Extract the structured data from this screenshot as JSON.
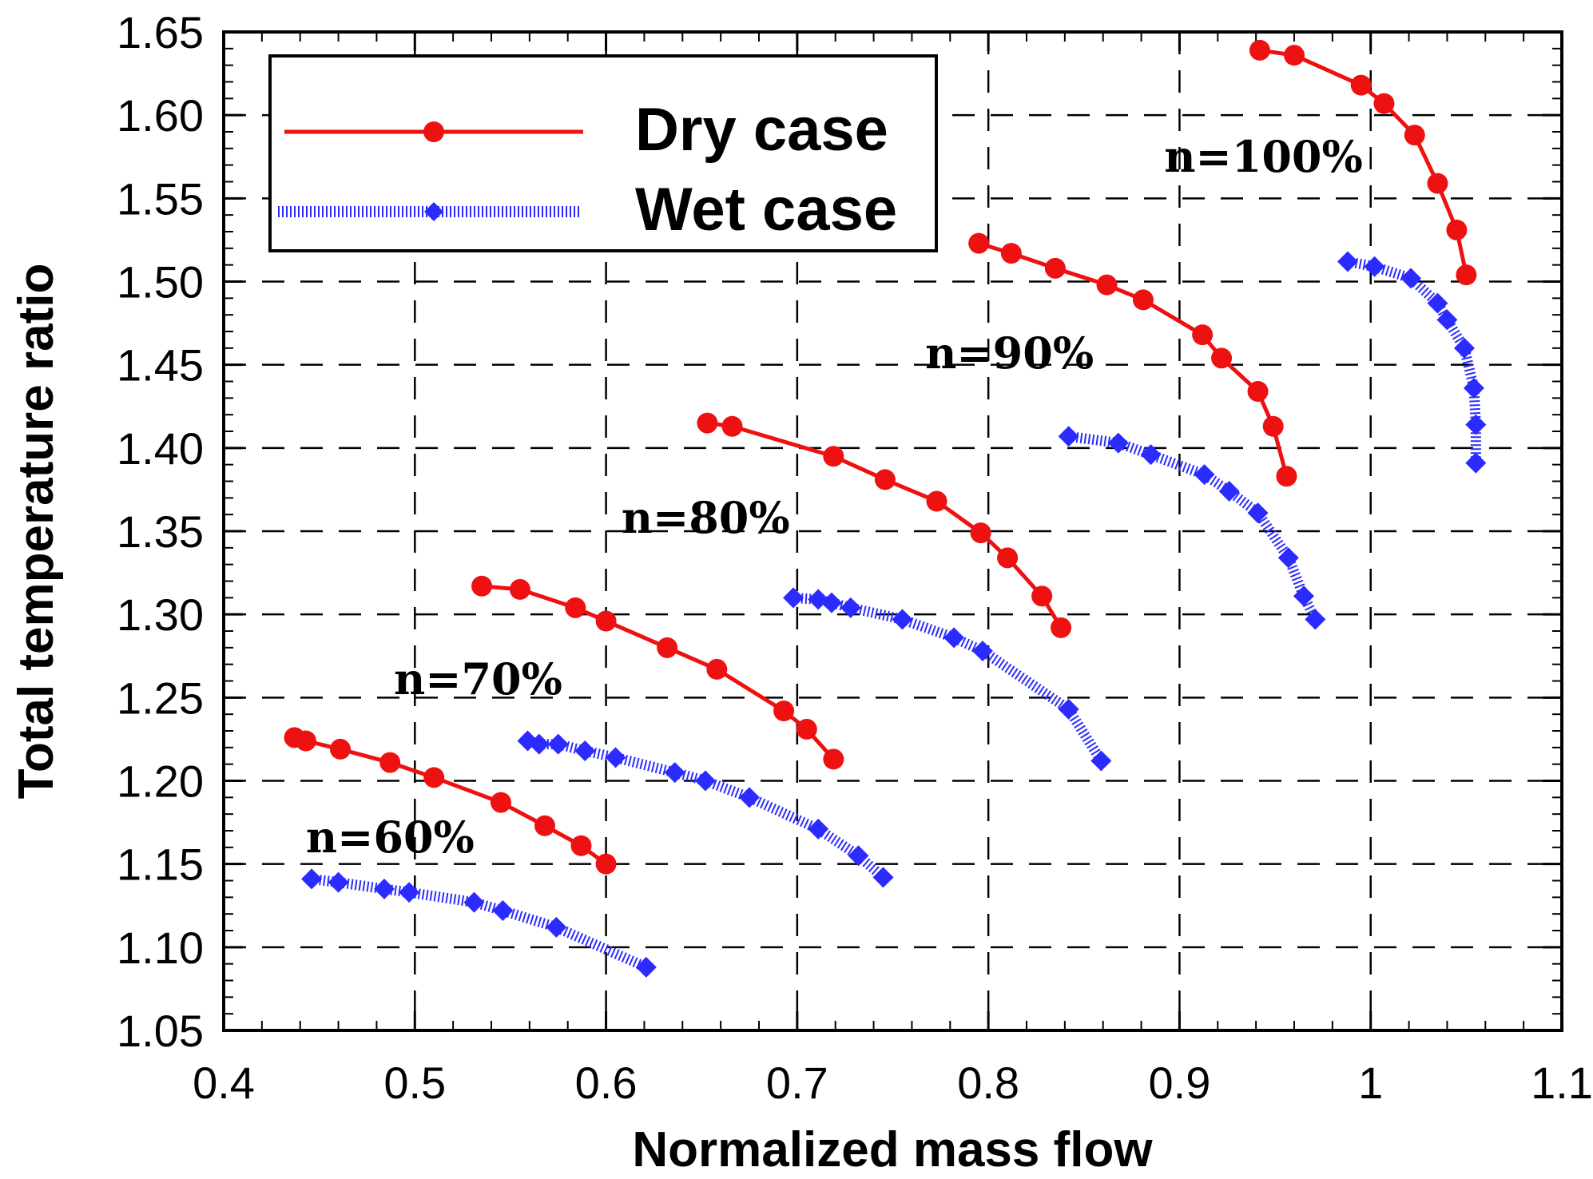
{
  "chart_data": {
    "type": "line",
    "xlabel": "Normalized mass flow",
    "ylabel": "Total temperature ratio",
    "xlim": [
      0.4,
      1.1
    ],
    "ylim": [
      1.05,
      1.65
    ],
    "xticks": [
      0.4,
      0.5,
      0.6,
      0.7,
      0.8,
      0.9,
      1.0,
      1.1
    ],
    "xtick_labels": [
      "0.4",
      "0.5",
      "0.6",
      "0.7",
      "0.8",
      "0.9",
      "1",
      "1.1"
    ],
    "yticks": [
      1.05,
      1.1,
      1.15,
      1.2,
      1.25,
      1.3,
      1.35,
      1.4,
      1.45,
      1.5,
      1.55,
      1.6,
      1.65
    ],
    "ytick_labels": [
      "1.05",
      "1.10",
      "1.15",
      "1.20",
      "1.25",
      "1.30",
      "1.35",
      "1.40",
      "1.45",
      "1.50",
      "1.55",
      "1.60",
      "1.65"
    ],
    "grid": true,
    "legend": {
      "placement": "top-left",
      "entries": [
        {
          "label": "Dry case",
          "color": "#ee1111",
          "marker": "circle",
          "line": "solid"
        },
        {
          "label": "Wet case",
          "color": "#2b2bff",
          "marker": "diamond",
          "line": "dotted"
        }
      ]
    },
    "annotations": [
      {
        "text": "n=60%",
        "x": 0.443,
        "y": 1.157
      },
      {
        "text": "n=70%",
        "x": 0.489,
        "y": 1.252
      },
      {
        "text": "n=80%",
        "x": 0.608,
        "y": 1.349
      },
      {
        "text": "n=90%",
        "x": 0.767,
        "y": 1.448
      },
      {
        "text": "n=100%",
        "x": 0.892,
        "y": 1.566
      }
    ],
    "series": [
      {
        "name": "Dry case",
        "speed": "n=60%",
        "x": [
          0.437,
          0.443,
          0.461,
          0.487,
          0.51,
          0.545,
          0.568,
          0.587,
          0.6
        ],
        "y": [
          1.226,
          1.224,
          1.219,
          1.211,
          1.202,
          1.187,
          1.173,
          1.161,
          1.15
        ]
      },
      {
        "name": "Wet case",
        "speed": "n=60%",
        "x": [
          0.446,
          0.46,
          0.484,
          0.497,
          0.531,
          0.546,
          0.574,
          0.621
        ],
        "y": [
          1.141,
          1.139,
          1.135,
          1.133,
          1.127,
          1.122,
          1.112,
          1.088
        ]
      },
      {
        "name": "Dry case",
        "speed": "n=70%",
        "x": [
          0.535,
          0.555,
          0.584,
          0.6,
          0.632,
          0.658,
          0.693,
          0.705,
          0.719
        ],
        "y": [
          1.317,
          1.315,
          1.304,
          1.296,
          1.28,
          1.267,
          1.242,
          1.231,
          1.213
        ]
      },
      {
        "name": "Wet case",
        "speed": "n=70%",
        "x": [
          0.559,
          0.565,
          0.575,
          0.589,
          0.605,
          0.636,
          0.652,
          0.675,
          0.711,
          0.732,
          0.745
        ],
        "y": [
          1.224,
          1.222,
          1.222,
          1.218,
          1.214,
          1.205,
          1.2,
          1.19,
          1.171,
          1.155,
          1.142
        ]
      },
      {
        "name": "Dry case",
        "speed": "n=80%",
        "x": [
          0.653,
          0.666,
          0.719,
          0.746,
          0.773,
          0.796,
          0.81,
          0.828,
          0.838
        ],
        "y": [
          1.415,
          1.413,
          1.395,
          1.381,
          1.368,
          1.349,
          1.334,
          1.311,
          1.292
        ]
      },
      {
        "name": "Wet case",
        "speed": "n=80%",
        "x": [
          0.698,
          0.711,
          0.718,
          0.728,
          0.755,
          0.782,
          0.797,
          0.842,
          0.859
        ],
        "y": [
          1.31,
          1.309,
          1.307,
          1.304,
          1.297,
          1.286,
          1.278,
          1.243,
          1.212
        ]
      },
      {
        "name": "Dry case",
        "speed": "n=90%",
        "x": [
          0.795,
          0.812,
          0.835,
          0.862,
          0.881,
          0.912,
          0.922,
          0.941,
          0.949,
          0.956
        ],
        "y": [
          1.523,
          1.517,
          1.508,
          1.498,
          1.489,
          1.468,
          1.454,
          1.434,
          1.413,
          1.383
        ]
      },
      {
        "name": "Wet case",
        "speed": "n=90%",
        "x": [
          0.842,
          0.868,
          0.885,
          0.913,
          0.926,
          0.941,
          0.957,
          0.965,
          0.971
        ],
        "y": [
          1.407,
          1.403,
          1.396,
          1.384,
          1.374,
          1.361,
          1.334,
          1.311,
          1.297
        ]
      },
      {
        "name": "Dry case",
        "speed": "n=100%",
        "x": [
          0.942,
          0.96,
          0.995,
          1.007,
          1.023,
          1.035,
          1.045,
          1.05
        ],
        "y": [
          1.639,
          1.636,
          1.618,
          1.607,
          1.588,
          1.559,
          1.531,
          1.504
        ]
      },
      {
        "name": "Wet case",
        "speed": "n=100%",
        "x": [
          0.988,
          1.002,
          1.021,
          1.035,
          1.04,
          1.049,
          1.054,
          1.055,
          1.055
        ],
        "y": [
          1.512,
          1.509,
          1.502,
          1.487,
          1.477,
          1.46,
          1.436,
          1.414,
          1.391
        ]
      }
    ]
  }
}
